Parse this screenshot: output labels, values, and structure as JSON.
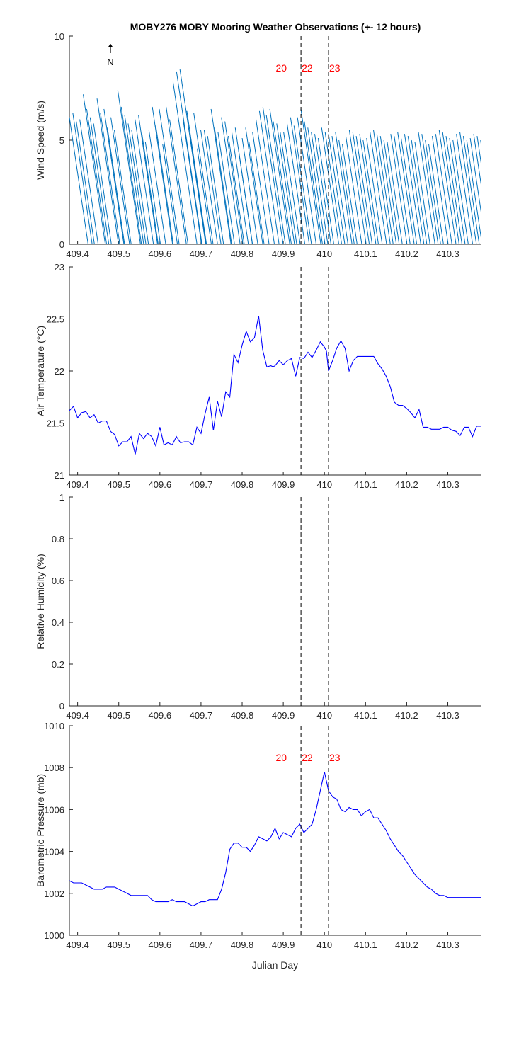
{
  "figure": {
    "title": "MOBY276 MOBY Mooring Weather Observations (+- 12 hours)",
    "xlabel": "Julian Day",
    "north_label": "N"
  },
  "colors": {
    "wind": "#0072BD",
    "series": "#0000FF",
    "marker_text": "#FF0000",
    "axis": "#262626"
  },
  "chart_data": [
    {
      "type": "quiver",
      "id": "wind",
      "ylabel": "Wind Speed (m/s)",
      "xlim": [
        409.38,
        410.38
      ],
      "ylim": [
        0,
        10
      ],
      "xticks": [
        409.4,
        409.5,
        409.6,
        409.7,
        409.8,
        409.9,
        410,
        410.1,
        410.2,
        410.3
      ],
      "yticks": [
        0,
        5,
        10
      ],
      "direction": "wind vectors point toward north-northwest",
      "start_x": 409.38,
      "step_x": 0.0084,
      "speeds": [
        6.1,
        6.3,
        5.9,
        6.0,
        7.2,
        6.5,
        6.1,
        5.8,
        7.0,
        6.3,
        6.5,
        5.6,
        6.1,
        5.5,
        7.4,
        6.6,
        6.2,
        5.8,
        5.5,
        6.0,
        6.2,
        5.3,
        4.9,
        5.5,
        6.6,
        5.7,
        6.5,
        4.8,
        6.6,
        6.0,
        7.8,
        8.3,
        8.4,
        5.9,
        6.4,
        5.2,
        6.3,
        4.6,
        5.5,
        5.5,
        5.2,
        6.5,
        5.6,
        5.4,
        6.1,
        5.9,
        5.2,
        5.4,
        5.6,
        4.5,
        5.1,
        5.6,
        4.9,
        5.4,
        6.0,
        6.4,
        6.6,
        6.2,
        6.5,
        5.9,
        5.8,
        5.4,
        5.4,
        5.8,
        6.1,
        5.7,
        6.1,
        6.5,
        5.9,
        5.6,
        5.4,
        5.3,
        5.1,
        5.6,
        5.4,
        5.3,
        5.2,
        5.4,
        5.0,
        4.8,
        5.2,
        5.5,
        5.4,
        5.2,
        5.3,
        5.0,
        5.1,
        5.4,
        5.5,
        5.3,
        5.2,
        5.0,
        4.9,
        5.3,
        5.2,
        5.4,
        5.1,
        5.3,
        5.2,
        5.0,
        4.9,
        5.4,
        5.3,
        5.0,
        4.8,
        5.2,
        5.3,
        5.5,
        5.4,
        5.2,
        5.1,
        5.0,
        5.3,
        5.4,
        5.2,
        5.0,
        5.1,
        5.3,
        5.2,
        5.0,
        4.9
      ]
    },
    {
      "type": "line",
      "id": "air_temperature",
      "ylabel": "Air Temperature (°C)",
      "xlim": [
        409.38,
        410.38
      ],
      "ylim": [
        21,
        23
      ],
      "xticks": [
        409.4,
        409.5,
        409.6,
        409.7,
        409.8,
        409.9,
        410,
        410.1,
        410.2,
        410.3
      ],
      "yticks": [
        21,
        21.5,
        22,
        22.5,
        23
      ],
      "x": [
        409.38,
        409.39,
        409.4,
        409.41,
        409.42,
        409.43,
        409.44,
        409.45,
        409.46,
        409.47,
        409.48,
        409.49,
        409.5,
        409.51,
        409.52,
        409.53,
        409.54,
        409.55,
        409.56,
        409.57,
        409.58,
        409.59,
        409.6,
        409.61,
        409.62,
        409.63,
        409.64,
        409.65,
        409.66,
        409.67,
        409.68,
        409.69,
        409.7,
        409.71,
        409.72,
        409.73,
        409.74,
        409.75,
        409.76,
        409.77,
        409.78,
        409.79,
        409.8,
        409.81,
        409.82,
        409.83,
        409.84,
        409.85,
        409.86,
        409.87,
        409.875,
        409.88,
        409.89,
        409.9,
        409.91,
        409.92,
        409.93,
        409.94,
        409.95,
        409.96,
        409.97,
        409.98,
        409.99,
        410.0,
        410.005,
        410.01,
        410.02,
        410.03,
        410.04,
        410.05,
        410.06,
        410.07,
        410.08,
        410.09,
        410.1,
        410.11,
        410.12,
        410.13,
        410.14,
        410.15,
        410.16,
        410.17,
        410.18,
        410.19,
        410.2,
        410.21,
        410.22,
        410.23,
        410.24,
        410.25,
        410.26,
        410.27,
        410.28,
        410.29,
        410.3,
        410.31,
        410.32,
        410.33,
        410.34,
        410.35,
        410.36,
        410.37,
        410.38
      ],
      "y": [
        21.62,
        21.66,
        21.55,
        21.6,
        21.61,
        21.55,
        21.58,
        21.5,
        21.52,
        21.52,
        21.42,
        21.39,
        21.28,
        21.32,
        21.32,
        21.37,
        21.2,
        21.4,
        21.35,
        21.4,
        21.37,
        21.28,
        21.46,
        21.29,
        21.31,
        21.29,
        21.37,
        21.31,
        21.32,
        21.32,
        21.29,
        21.46,
        21.4,
        21.59,
        21.75,
        21.43,
        21.71,
        21.56,
        21.8,
        21.75,
        22.16,
        22.08,
        22.25,
        22.38,
        22.28,
        22.32,
        22.53,
        22.2,
        22.04,
        22.05,
        22.04,
        22.05,
        22.1,
        22.06,
        22.1,
        22.12,
        21.95,
        22.13,
        22.12,
        22.18,
        22.13,
        22.2,
        22.28,
        22.23,
        22.19,
        22.0,
        22.1,
        22.22,
        22.29,
        22.22,
        22.0,
        22.1,
        22.14,
        22.14,
        22.14,
        22.14,
        22.14,
        22.07,
        22.02,
        21.95,
        21.85,
        21.7,
        21.67,
        21.67,
        21.64,
        21.6,
        21.55,
        21.63,
        21.46,
        21.46,
        21.44,
        21.44,
        21.44,
        21.46,
        21.46,
        21.43,
        21.42,
        21.38,
        21.46,
        21.46,
        21.37,
        21.47,
        21.47
      ],
      "series_color": "#0000FF"
    },
    {
      "type": "line",
      "id": "relative_humidity",
      "ylabel": "Relative Humidity (%)",
      "xlim": [
        409.38,
        410.38
      ],
      "ylim": [
        0,
        1
      ],
      "xticks": [
        409.4,
        409.5,
        409.6,
        409.7,
        409.8,
        409.9,
        410,
        410.1,
        410.2,
        410.3
      ],
      "yticks": [
        0,
        0.2,
        0.4,
        0.6,
        0.8,
        1
      ],
      "x": [],
      "y": []
    },
    {
      "type": "line",
      "id": "barometric_pressure",
      "ylabel": "Barometric Pressure (mb)",
      "xlabel": "Julian Day",
      "xlim": [
        409.38,
        410.38
      ],
      "ylim": [
        1000,
        1010
      ],
      "xticks": [
        409.4,
        409.5,
        409.6,
        409.7,
        409.8,
        409.9,
        410,
        410.1,
        410.2,
        410.3
      ],
      "yticks": [
        1000,
        1002,
        1004,
        1006,
        1008,
        1010
      ],
      "x": [
        409.38,
        409.39,
        409.4,
        409.41,
        409.42,
        409.43,
        409.44,
        409.45,
        409.46,
        409.47,
        409.48,
        409.49,
        409.5,
        409.51,
        409.52,
        409.53,
        409.54,
        409.55,
        409.56,
        409.57,
        409.58,
        409.59,
        409.6,
        409.61,
        409.62,
        409.63,
        409.64,
        409.65,
        409.66,
        409.67,
        409.68,
        409.69,
        409.7,
        409.71,
        409.72,
        409.73,
        409.74,
        409.75,
        409.76,
        409.77,
        409.78,
        409.79,
        409.8,
        409.81,
        409.82,
        409.83,
        409.84,
        409.85,
        409.86,
        409.87,
        409.88,
        409.89,
        409.9,
        409.91,
        409.92,
        409.93,
        409.94,
        409.95,
        409.96,
        409.97,
        409.98,
        409.99,
        410.0,
        410.01,
        410.02,
        410.03,
        410.04,
        410.05,
        410.06,
        410.07,
        410.08,
        410.09,
        410.1,
        410.11,
        410.12,
        410.13,
        410.14,
        410.15,
        410.16,
        410.17,
        410.18,
        410.19,
        410.2,
        410.21,
        410.22,
        410.23,
        410.24,
        410.25,
        410.26,
        410.27,
        410.28,
        410.29,
        410.3,
        410.31,
        410.32,
        410.33,
        410.34,
        410.35,
        410.36,
        410.37,
        410.38
      ],
      "y": [
        1002.6,
        1002.5,
        1002.5,
        1002.5,
        1002.4,
        1002.3,
        1002.2,
        1002.2,
        1002.2,
        1002.3,
        1002.3,
        1002.3,
        1002.2,
        1002.1,
        1002.0,
        1001.9,
        1001.9,
        1001.9,
        1001.9,
        1001.9,
        1001.7,
        1001.6,
        1001.6,
        1001.6,
        1001.6,
        1001.7,
        1001.6,
        1001.6,
        1001.6,
        1001.5,
        1001.4,
        1001.5,
        1001.6,
        1001.6,
        1001.7,
        1001.7,
        1001.7,
        1002.2,
        1003.0,
        1004.1,
        1004.4,
        1004.4,
        1004.2,
        1004.2,
        1004.0,
        1004.3,
        1004.7,
        1004.6,
        1004.5,
        1004.7,
        1005.1,
        1004.6,
        1004.9,
        1004.8,
        1004.7,
        1005.1,
        1005.3,
        1004.9,
        1005.1,
        1005.3,
        1006.0,
        1006.9,
        1007.8,
        1006.9,
        1006.6,
        1006.5,
        1006.0,
        1005.9,
        1006.1,
        1006.0,
        1006.0,
        1005.7,
        1005.9,
        1006.0,
        1005.6,
        1005.6,
        1005.3,
        1005.0,
        1004.6,
        1004.3,
        1004.0,
        1003.8,
        1003.5,
        1003.2,
        1002.9,
        1002.7,
        1002.5,
        1002.3,
        1002.2,
        1002.0,
        1001.9,
        1001.9,
        1001.8,
        1001.8,
        1001.8,
        1001.8,
        1001.8,
        1001.8,
        1001.8,
        1001.8,
        1001.8
      ],
      "series_color": "#0000FF"
    }
  ],
  "markers": {
    "positions": [
      409.88,
      409.943,
      410.01
    ],
    "labels": [
      "20",
      "22",
      "23"
    ]
  }
}
